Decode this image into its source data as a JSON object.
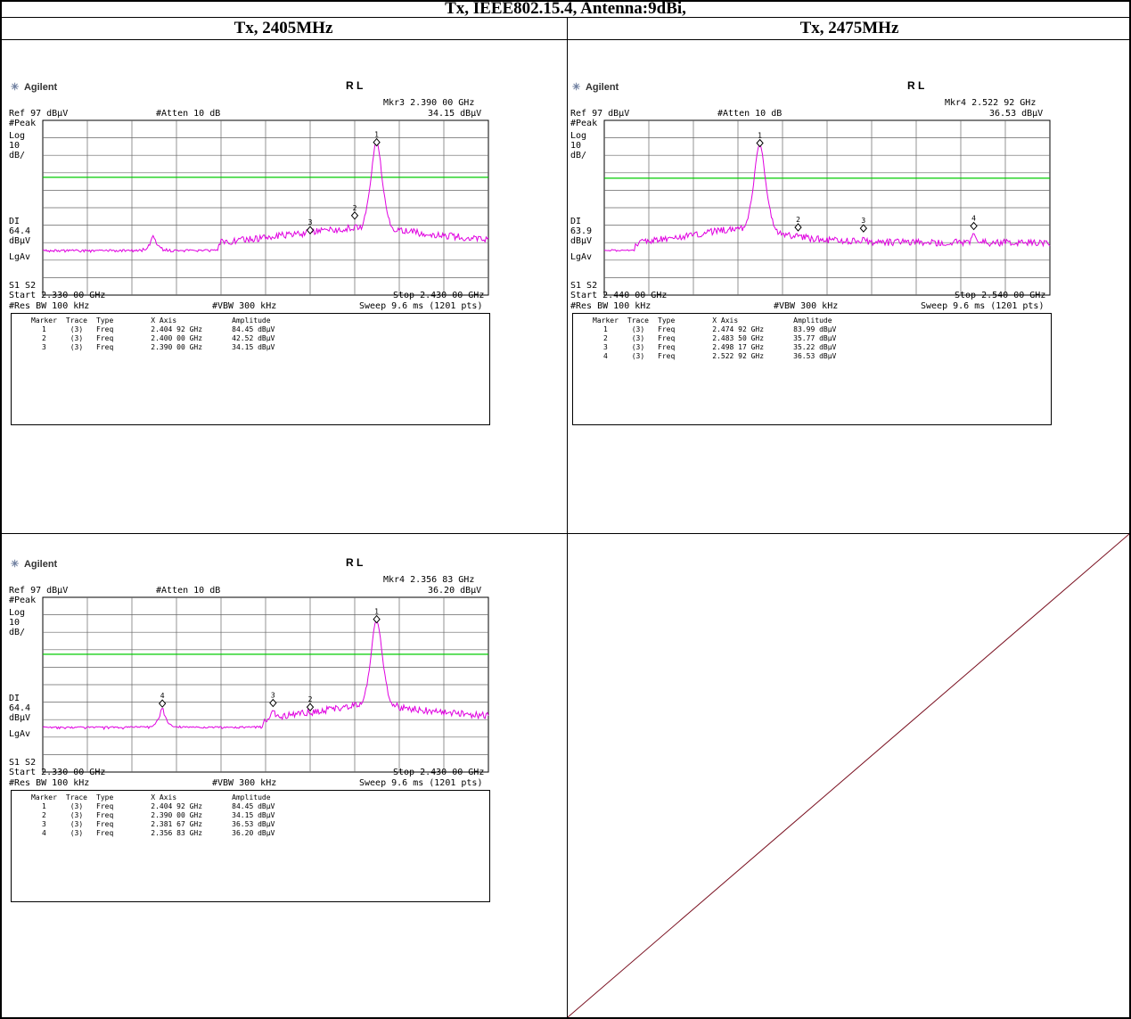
{
  "title": "Tx, IEEE802.15.4, Antenna:9dBi,",
  "columns": [
    "Tx, 2405MHz",
    "Tx, 2475MHz"
  ],
  "chart_data": [
    {
      "type": "line",
      "brand": "Agilent",
      "mode": "R L",
      "marker_readout": "Mkr3  2.390 00 GHz",
      "marker_amplitude": "34.15 dBµV",
      "ref": "Ref 97 dBµV",
      "atten": "#Atten 10 dB",
      "detector": "#Peak",
      "scale": [
        "Log",
        "10",
        "dB/"
      ],
      "display_line": [
        "DI",
        "64.4",
        "dBµV"
      ],
      "averaging": "LgAv",
      "s_labels": "S1  S2",
      "start": "Start 2.330 00 GHz",
      "stop": "Stop 2.430 00 GHz",
      "rbw": "#Res BW 100 kHz",
      "vbw": "#VBW 300 kHz",
      "sweep": "Sweep 9.6 ms (1201 pts)",
      "xlim": [
        2.33,
        2.43
      ],
      "ylim": [
        -3,
        97
      ],
      "display_line_value": 64.4,
      "noise_floor": 22,
      "peaks": [
        {
          "x": 2.3548,
          "y": 31,
          "w": 0.0008
        },
        {
          "x": 2.4049,
          "y": 84.45,
          "w": 0.0018
        }
      ],
      "shoulder": {
        "from": 2.3695,
        "level": 27
      },
      "marker_table": {
        "headers": [
          "Marker",
          "Trace",
          "Type",
          "X Axis",
          "Amplitude"
        ],
        "rows": [
          [
            "1",
            "(3)",
            "Freq",
            "2.404 92 GHz",
            "84.45 dBµV"
          ],
          [
            "2",
            "(3)",
            "Freq",
            "2.400 00 GHz",
            "42.52 dBµV"
          ],
          [
            "3",
            "(3)",
            "Freq",
            "2.390 00 GHz",
            "34.15 dBµV"
          ]
        ]
      },
      "markers": [
        {
          "label": "1",
          "x": 2.40492,
          "y": 84.45
        },
        {
          "label": "2",
          "x": 2.4,
          "y": 42.52
        },
        {
          "label": "3",
          "x": 2.39,
          "y": 34.15
        }
      ],
      "trace_color": "#e000e0",
      "line_color": "#00cc00"
    },
    {
      "type": "line",
      "brand": "Agilent",
      "mode": "R L",
      "marker_readout": "Mkr4  2.522 92 GHz",
      "marker_amplitude": "36.53 dBµV",
      "ref": "Ref 97 dBµV",
      "atten": "#Atten 10 dB",
      "detector": "#Peak",
      "scale": [
        "Log",
        "10",
        "dB/"
      ],
      "display_line": [
        "DI",
        "63.9",
        "dBµV"
      ],
      "averaging": "LgAv",
      "s_labels": "S1  S2",
      "start": "Start 2.440 00 GHz",
      "stop": "Stop 2.540 00 GHz",
      "rbw": "#Res BW 100 kHz",
      "vbw": "#VBW 300 kHz",
      "sweep": "Sweep 9.6 ms (1201 pts)",
      "xlim": [
        2.44,
        2.54
      ],
      "ylim": [
        -3,
        97
      ],
      "display_line_value": 63.9,
      "noise_floor": 22,
      "peaks": [
        {
          "x": 2.4749,
          "y": 83.99,
          "w": 0.0018
        },
        {
          "x": 2.4982,
          "y": 30,
          "w": 0.0008
        },
        {
          "x": 2.5229,
          "y": 33,
          "w": 0.0008
        }
      ],
      "shoulder": {
        "from": 2.447,
        "level": 27,
        "falloff": 2.5
      },
      "marker_table": {
        "headers": [
          "Marker",
          "Trace",
          "Type",
          "X Axis",
          "Amplitude"
        ],
        "rows": [
          [
            "1",
            "(3)",
            "Freq",
            "2.474 92 GHz",
            "83.99 dBµV"
          ],
          [
            "2",
            "(3)",
            "Freq",
            "2.483 50 GHz",
            "35.77 dBµV"
          ],
          [
            "3",
            "(3)",
            "Freq",
            "2.498 17 GHz",
            "35.22 dBµV"
          ],
          [
            "4",
            "(3)",
            "Freq",
            "2.522 92 GHz",
            "36.53 dBµV"
          ]
        ]
      },
      "markers": [
        {
          "label": "1",
          "x": 2.47492,
          "y": 83.99
        },
        {
          "label": "2",
          "x": 2.4835,
          "y": 35.77
        },
        {
          "label": "3",
          "x": 2.49817,
          "y": 35.22
        },
        {
          "label": "4",
          "x": 2.52292,
          "y": 36.53
        }
      ],
      "trace_color": "#e000e0",
      "line_color": "#00cc00"
    },
    {
      "type": "line",
      "brand": "Agilent",
      "mode": "R L",
      "marker_readout": "Mkr4  2.356 83 GHz",
      "marker_amplitude": "36.20 dBµV",
      "ref": "Ref 97 dBµV",
      "atten": "#Atten 10 dB",
      "detector": "#Peak",
      "scale": [
        "Log",
        "10",
        "dB/"
      ],
      "display_line": [
        "DI",
        "64.4",
        "dBµV"
      ],
      "averaging": "LgAv",
      "s_labels": "S1  S2",
      "start": "Start 2.330 00 GHz",
      "stop": "Stop 2.430 00 GHz",
      "rbw": "#Res BW 100 kHz",
      "vbw": "#VBW 300 kHz",
      "sweep": "Sweep 9.6 ms (1201 pts)",
      "xlim": [
        2.33,
        2.43
      ],
      "ylim": [
        -3,
        97
      ],
      "display_line_value": 64.4,
      "noise_floor": 22,
      "peaks": [
        {
          "x": 2.3568,
          "y": 33,
          "w": 0.0008
        },
        {
          "x": 2.3817,
          "y": 33,
          "w": 0.0008
        },
        {
          "x": 2.4049,
          "y": 84.45,
          "w": 0.0018
        }
      ],
      "shoulder": {
        "from": 2.3795,
        "level": 27
      },
      "marker_table": {
        "headers": [
          "Marker",
          "Trace",
          "Type",
          "X Axis",
          "Amplitude"
        ],
        "rows": [
          [
            "1",
            "(3)",
            "Freq",
            "2.404 92 GHz",
            "84.45 dBµV"
          ],
          [
            "2",
            "(3)",
            "Freq",
            "2.390 00 GHz",
            "34.15 dBµV"
          ],
          [
            "3",
            "(3)",
            "Freq",
            "2.381 67 GHz",
            "36.53 dBµV"
          ],
          [
            "4",
            "(3)",
            "Freq",
            "2.356 83 GHz",
            "36.20 dBµV"
          ]
        ]
      },
      "markers": [
        {
          "label": "1",
          "x": 2.40492,
          "y": 84.45
        },
        {
          "label": "2",
          "x": 2.39,
          "y": 34.15
        },
        {
          "label": "3",
          "x": 2.38167,
          "y": 36.53
        },
        {
          "label": "4",
          "x": 2.35683,
          "y": 36.2
        }
      ],
      "trace_color": "#e000e0",
      "line_color": "#00cc00"
    }
  ]
}
